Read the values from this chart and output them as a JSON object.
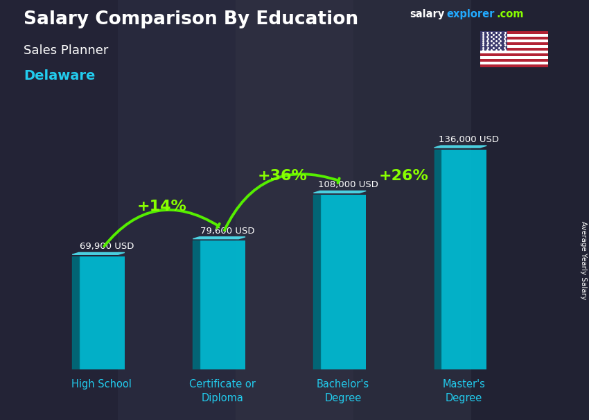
{
  "title": "Salary Comparison By Education",
  "subtitle": "Sales Planner",
  "location": "Delaware",
  "ylabel": "Average Yearly Salary",
  "categories": [
    "High School",
    "Certificate or\nDiploma",
    "Bachelor's\nDegree",
    "Master's\nDegree"
  ],
  "values": [
    69900,
    79600,
    108000,
    136000
  ],
  "value_labels": [
    "69,900 USD",
    "79,600 USD",
    "108,000 USD",
    "136,000 USD"
  ],
  "pct_labels": [
    "+14%",
    "+36%",
    "+26%"
  ],
  "bar_face_color": "#00bcd4",
  "bar_side_color": "#006a7a",
  "bar_top_color": "#4dd8e8",
  "bg_overlay_color": "#1a1a2e",
  "bg_overlay_alpha": 0.55,
  "title_color": "#ffffff",
  "subtitle_color": "#ffffff",
  "location_color": "#22ccee",
  "value_label_color": "#ffffff",
  "pct_color": "#88ff00",
  "arrow_color": "#55ee00",
  "watermark_salary_color": "#ffffff",
  "watermark_explorer_color": "#22aaff",
  "watermark_com_color": "#88ff00",
  "xticklabel_color": "#22ccee",
  "ylabel_color": "#ffffff",
  "photo_bg_color": "#3a3a4a"
}
